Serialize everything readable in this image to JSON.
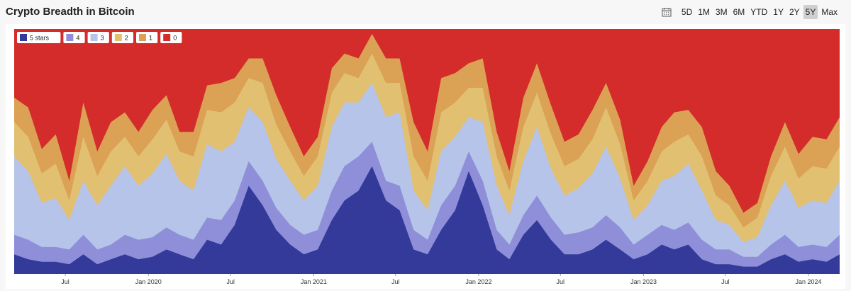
{
  "title": "Crypto Breadth in Bitcoin",
  "range_buttons": [
    {
      "label": "5D",
      "active": false
    },
    {
      "label": "1M",
      "active": false
    },
    {
      "label": "3M",
      "active": false
    },
    {
      "label": "6M",
      "active": false
    },
    {
      "label": "YTD",
      "active": false
    },
    {
      "label": "1Y",
      "active": false
    },
    {
      "label": "2Y",
      "active": false
    },
    {
      "label": "5Y",
      "active": true
    },
    {
      "label": "Max",
      "active": false
    }
  ],
  "icons": {
    "calendar": "calendar-icon"
  },
  "chart_data": {
    "type": "area",
    "stacked": true,
    "normalized": true,
    "title": "Crypto Breadth in Bitcoin",
    "ylim": [
      0,
      100
    ],
    "xlim": [
      "2019-03-10",
      "2024-03-10"
    ],
    "legend_position": "top-left",
    "x_ticks": [
      {
        "date": "2019-07-01",
        "label": "Jul"
      },
      {
        "date": "2020-01-01",
        "label": "Jan 2020"
      },
      {
        "date": "2020-07-01",
        "label": "Jul"
      },
      {
        "date": "2021-01-01",
        "label": "Jan 2021"
      },
      {
        "date": "2021-07-01",
        "label": "Jul"
      },
      {
        "date": "2022-01-01",
        "label": "Jan 2022"
      },
      {
        "date": "2022-07-01",
        "label": "Jul"
      },
      {
        "date": "2023-01-01",
        "label": "Jan 2023"
      },
      {
        "date": "2023-07-01",
        "label": "Jul"
      },
      {
        "date": "2024-01-01",
        "label": "Jan 2024"
      }
    ],
    "x": [
      "2019-03-10",
      "2019-04-10",
      "2019-05-10",
      "2019-06-10",
      "2019-07-10",
      "2019-08-10",
      "2019-09-10",
      "2019-10-10",
      "2019-11-10",
      "2019-12-10",
      "2020-01-10",
      "2020-02-10",
      "2020-03-10",
      "2020-04-10",
      "2020-05-10",
      "2020-06-10",
      "2020-07-10",
      "2020-08-10",
      "2020-09-10",
      "2020-10-10",
      "2020-11-10",
      "2020-12-10",
      "2021-01-10",
      "2021-02-10",
      "2021-03-10",
      "2021-04-10",
      "2021-05-10",
      "2021-06-10",
      "2021-07-10",
      "2021-08-10",
      "2021-09-10",
      "2021-10-10",
      "2021-11-10",
      "2021-12-10",
      "2022-01-10",
      "2022-02-10",
      "2022-03-10",
      "2022-04-10",
      "2022-05-10",
      "2022-06-10",
      "2022-07-10",
      "2022-08-10",
      "2022-09-10",
      "2022-10-10",
      "2022-11-10",
      "2022-12-10",
      "2023-01-10",
      "2023-02-10",
      "2023-03-10",
      "2023-04-10",
      "2023-05-10",
      "2023-06-10",
      "2023-07-10",
      "2023-08-10",
      "2023-09-10",
      "2023-10-10",
      "2023-11-10",
      "2023-12-10",
      "2024-01-10",
      "2024-02-10",
      "2024-03-10"
    ],
    "series": [
      {
        "name": "5 stars",
        "color": "#333a99",
        "values": [
          8,
          6,
          5,
          5,
          4,
          8,
          4,
          6,
          8,
          6,
          7,
          10,
          8,
          6,
          14,
          12,
          20,
          36,
          28,
          18,
          12,
          8,
          10,
          22,
          30,
          34,
          44,
          30,
          26,
          10,
          8,
          18,
          26,
          42,
          28,
          10,
          6,
          16,
          22,
          14,
          8,
          8,
          10,
          14,
          10,
          6,
          8,
          12,
          10,
          12,
          6,
          4,
          4,
          3,
          3,
          6,
          8,
          5,
          6,
          5,
          8
        ]
      },
      {
        "name": "4",
        "color": "#8f8fd9",
        "values": [
          8,
          8,
          6,
          6,
          6,
          8,
          6,
          6,
          8,
          8,
          8,
          9,
          8,
          8,
          9,
          10,
          10,
          10,
          10,
          9,
          8,
          8,
          8,
          12,
          14,
          14,
          10,
          8,
          10,
          8,
          6,
          10,
          10,
          8,
          10,
          8,
          6,
          8,
          10,
          9,
          8,
          9,
          9,
          10,
          9,
          6,
          8,
          8,
          8,
          9,
          8,
          6,
          6,
          4,
          4,
          6,
          8,
          6,
          6,
          6,
          8
        ]
      },
      {
        "name": "3",
        "color": "#b5c4e8",
        "values": [
          32,
          28,
          18,
          20,
          12,
          22,
          18,
          24,
          28,
          22,
          26,
          30,
          22,
          20,
          30,
          28,
          24,
          22,
          24,
          20,
          18,
          14,
          18,
          26,
          26,
          22,
          24,
          26,
          30,
          16,
          12,
          22,
          20,
          14,
          24,
          18,
          12,
          22,
          28,
          20,
          16,
          18,
          22,
          28,
          20,
          10,
          12,
          18,
          22,
          24,
          20,
          12,
          10,
          6,
          8,
          16,
          22,
          16,
          18,
          18,
          22
        ]
      },
      {
        "name": "2",
        "color": "#e2c072",
        "values": [
          14,
          14,
          12,
          14,
          8,
          18,
          12,
          14,
          12,
          12,
          14,
          14,
          12,
          14,
          14,
          16,
          16,
          12,
          16,
          14,
          12,
          10,
          12,
          14,
          12,
          10,
          12,
          14,
          12,
          14,
          12,
          16,
          14,
          12,
          14,
          12,
          10,
          14,
          14,
          14,
          12,
          12,
          14,
          16,
          14,
          8,
          10,
          12,
          14,
          12,
          14,
          10,
          8,
          6,
          8,
          12,
          14,
          12,
          14,
          14,
          14
        ]
      },
      {
        "name": "1",
        "color": "#dba155",
        "values": [
          10,
          12,
          10,
          12,
          8,
          14,
          10,
          12,
          10,
          10,
          12,
          10,
          8,
          10,
          10,
          12,
          10,
          8,
          10,
          12,
          10,
          8,
          8,
          10,
          8,
          8,
          8,
          10,
          10,
          14,
          12,
          14,
          12,
          10,
          12,
          10,
          8,
          12,
          12,
          12,
          10,
          10,
          12,
          10,
          10,
          6,
          8,
          10,
          12,
          10,
          12,
          10,
          8,
          6,
          6,
          8,
          10,
          10,
          12,
          12,
          12
        ]
      }
    ],
    "remainder_series": {
      "name": "0",
      "color": "#d42b2b"
    }
  }
}
